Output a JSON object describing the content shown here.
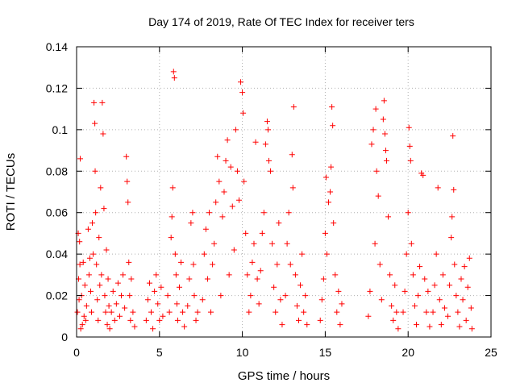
{
  "chart_data": {
    "type": "scatter",
    "title": "Day 174 of 2019, Rate Of TEC Index for receiver ters",
    "xlabel": "GPS time / hours",
    "ylabel": "ROTI / TECUs",
    "xlim": [
      0,
      25
    ],
    "ylim": [
      0,
      0.14
    ],
    "xticks": [
      0,
      5,
      10,
      15,
      20,
      25
    ],
    "xtick_labels": [
      "0",
      "5",
      "10",
      "15",
      "20",
      "25"
    ],
    "yticks": [
      0,
      0.02,
      0.04,
      0.06,
      0.08,
      0.1,
      0.12,
      0.14
    ],
    "ytick_labels": [
      "0",
      "0.02",
      "0.04",
      "0.06",
      "0.08",
      "0.1",
      "0.12",
      "0.14"
    ],
    "grid": true,
    "marker": "+",
    "marker_color": "#ff0000",
    "series": [
      {
        "name": "ROTI",
        "points": [
          [
            0.05,
            0.012
          ],
          [
            0.1,
            0.05
          ],
          [
            0.12,
            0.028
          ],
          [
            0.15,
            0.018
          ],
          [
            0.18,
            0.046
          ],
          [
            0.2,
            0.035
          ],
          [
            0.22,
            0.086
          ],
          [
            0.25,
            0.004
          ],
          [
            0.3,
            0.02
          ],
          [
            0.35,
            0.006
          ],
          [
            0.4,
            0.036
          ],
          [
            0.45,
            0.01
          ],
          [
            0.5,
            0.025
          ],
          [
            0.55,
            0.008
          ],
          [
            0.6,
            0.015
          ],
          [
            0.7,
            0.052
          ],
          [
            0.75,
            0.03
          ],
          [
            0.8,
            0.038
          ],
          [
            0.85,
            0.022
          ],
          [
            0.9,
            0.012
          ],
          [
            0.95,
            0.055
          ],
          [
            1.0,
            0.04
          ],
          [
            1.05,
            0.113
          ],
          [
            1.1,
            0.103
          ],
          [
            1.12,
            0.08
          ],
          [
            1.15,
            0.06
          ],
          [
            1.2,
            0.035
          ],
          [
            1.25,
            0.018
          ],
          [
            1.3,
            0.008
          ],
          [
            1.35,
            0.048
          ],
          [
            1.4,
            0.025
          ],
          [
            1.45,
            0.072
          ],
          [
            1.5,
            0.03
          ],
          [
            1.55,
            0.113
          ],
          [
            1.6,
            0.098
          ],
          [
            1.65,
            0.062
          ],
          [
            1.7,
            0.02
          ],
          [
            1.75,
            0.012
          ],
          [
            1.8,
            0.042
          ],
          [
            1.85,
            0.006
          ],
          [
            1.9,
            0.028
          ],
          [
            1.95,
            0.015
          ],
          [
            2.0,
            0.004
          ],
          [
            2.1,
            0.012
          ],
          [
            2.2,
            0.022
          ],
          [
            2.3,
            0.008
          ],
          [
            2.4,
            0.016
          ],
          [
            2.5,
            0.026
          ],
          [
            2.6,
            0.01
          ],
          [
            2.7,
            0.02
          ],
          [
            2.8,
            0.03
          ],
          [
            2.9,
            0.014
          ],
          [
            3.0,
            0.087
          ],
          [
            3.05,
            0.075
          ],
          [
            3.1,
            0.065
          ],
          [
            3.15,
            0.036
          ],
          [
            3.2,
            0.02
          ],
          [
            3.25,
            0.008
          ],
          [
            3.3,
            0.028
          ],
          [
            3.4,
            0.012
          ],
          [
            3.5,
            0.005
          ],
          [
            4.2,
            0.008
          ],
          [
            4.3,
            0.018
          ],
          [
            4.4,
            0.026
          ],
          [
            4.5,
            0.012
          ],
          [
            4.6,
            0.004
          ],
          [
            4.7,
            0.022
          ],
          [
            4.8,
            0.03
          ],
          [
            4.9,
            0.016
          ],
          [
            5.0,
            0.008
          ],
          [
            5.1,
            0.024
          ],
          [
            5.2,
            0.01
          ],
          [
            5.5,
            0.02
          ],
          [
            5.6,
            0.012
          ],
          [
            5.7,
            0.048
          ],
          [
            5.75,
            0.058
          ],
          [
            5.8,
            0.072
          ],
          [
            5.85,
            0.128
          ],
          [
            5.9,
            0.125
          ],
          [
            5.95,
            0.04
          ],
          [
            6.0,
            0.03
          ],
          [
            6.05,
            0.016
          ],
          [
            6.1,
            0.008
          ],
          [
            6.2,
            0.024
          ],
          [
            6.3,
            0.036
          ],
          [
            6.4,
            0.012
          ],
          [
            6.5,
            0.005
          ],
          [
            6.7,
            0.015
          ],
          [
            6.8,
            0.028
          ],
          [
            6.9,
            0.055
          ],
          [
            7.0,
            0.06
          ],
          [
            7.05,
            0.035
          ],
          [
            7.1,
            0.02
          ],
          [
            7.2,
            0.008
          ],
          [
            7.3,
            0.012
          ],
          [
            7.6,
            0.018
          ],
          [
            7.7,
            0.04
          ],
          [
            7.8,
            0.052
          ],
          [
            7.9,
            0.028
          ],
          [
            8.0,
            0.06
          ],
          [
            8.1,
            0.012
          ],
          [
            8.2,
            0.035
          ],
          [
            8.3,
            0.045
          ],
          [
            8.4,
            0.065
          ],
          [
            8.5,
            0.087
          ],
          [
            8.6,
            0.075
          ],
          [
            8.7,
            0.02
          ],
          [
            8.8,
            0.058
          ],
          [
            8.9,
            0.07
          ],
          [
            9.0,
            0.085
          ],
          [
            9.1,
            0.095
          ],
          [
            9.2,
            0.03
          ],
          [
            9.3,
            0.082
          ],
          [
            9.4,
            0.063
          ],
          [
            9.5,
            0.042
          ],
          [
            9.6,
            0.1
          ],
          [
            9.7,
            0.08
          ],
          [
            9.8,
            0.066
          ],
          [
            9.9,
            0.123
          ],
          [
            10.0,
            0.118
          ],
          [
            10.05,
            0.108
          ],
          [
            10.1,
            0.075
          ],
          [
            10.2,
            0.05
          ],
          [
            10.3,
            0.03
          ],
          [
            10.4,
            0.012
          ],
          [
            10.5,
            0.02
          ],
          [
            10.6,
            0.036
          ],
          [
            10.7,
            0.045
          ],
          [
            10.8,
            0.094
          ],
          [
            10.9,
            0.028
          ],
          [
            11.0,
            0.016
          ],
          [
            11.1,
            0.032
          ],
          [
            11.2,
            0.05
          ],
          [
            11.3,
            0.06
          ],
          [
            11.4,
            0.093
          ],
          [
            11.5,
            0.104
          ],
          [
            11.55,
            0.1
          ],
          [
            11.6,
            0.085
          ],
          [
            11.7,
            0.08
          ],
          [
            11.8,
            0.045
          ],
          [
            11.9,
            0.024
          ],
          [
            12.0,
            0.012
          ],
          [
            12.1,
            0.035
          ],
          [
            12.2,
            0.055
          ],
          [
            12.3,
            0.018
          ],
          [
            12.4,
            0.006
          ],
          [
            12.6,
            0.02
          ],
          [
            12.7,
            0.045
          ],
          [
            12.8,
            0.06
          ],
          [
            12.9,
            0.035
          ],
          [
            13.0,
            0.088
          ],
          [
            13.05,
            0.072
          ],
          [
            13.1,
            0.111
          ],
          [
            13.2,
            0.03
          ],
          [
            13.3,
            0.015
          ],
          [
            13.4,
            0.008
          ],
          [
            13.5,
            0.025
          ],
          [
            13.6,
            0.04
          ],
          [
            13.7,
            0.012
          ],
          [
            13.8,
            0.02
          ],
          [
            13.9,
            0.006
          ],
          [
            14.7,
            0.008
          ],
          [
            14.8,
            0.018
          ],
          [
            14.9,
            0.028
          ],
          [
            15.0,
            0.05
          ],
          [
            15.05,
            0.077
          ],
          [
            15.1,
            0.04
          ],
          [
            15.2,
            0.065
          ],
          [
            15.3,
            0.07
          ],
          [
            15.35,
            0.082
          ],
          [
            15.4,
            0.111
          ],
          [
            15.45,
            0.102
          ],
          [
            15.5,
            0.055
          ],
          [
            15.6,
            0.03
          ],
          [
            15.7,
            0.012
          ],
          [
            15.8,
            0.022
          ],
          [
            15.9,
            0.006
          ],
          [
            16.0,
            0.016
          ],
          [
            17.6,
            0.01
          ],
          [
            17.7,
            0.022
          ],
          [
            17.8,
            0.093
          ],
          [
            17.9,
            0.1
          ],
          [
            18.0,
            0.045
          ],
          [
            18.05,
            0.11
          ],
          [
            18.1,
            0.08
          ],
          [
            18.2,
            0.068
          ],
          [
            18.3,
            0.035
          ],
          [
            18.4,
            0.018
          ],
          [
            18.5,
            0.105
          ],
          [
            18.55,
            0.114
          ],
          [
            18.6,
            0.098
          ],
          [
            18.65,
            0.09
          ],
          [
            18.7,
            0.085
          ],
          [
            18.8,
            0.058
          ],
          [
            18.9,
            0.03
          ],
          [
            19.0,
            0.015
          ],
          [
            19.1,
            0.008
          ],
          [
            19.2,
            0.025
          ],
          [
            19.3,
            0.012
          ],
          [
            19.4,
            0.004
          ],
          [
            19.7,
            0.012
          ],
          [
            19.8,
            0.022
          ],
          [
            19.9,
            0.04
          ],
          [
            20.0,
            0.06
          ],
          [
            20.05,
            0.101
          ],
          [
            20.1,
            0.092
          ],
          [
            20.15,
            0.085
          ],
          [
            20.2,
            0.045
          ],
          [
            20.3,
            0.03
          ],
          [
            20.4,
            0.015
          ],
          [
            20.5,
            0.006
          ],
          [
            20.6,
            0.02
          ],
          [
            20.7,
            0.034
          ],
          [
            20.8,
            0.079
          ],
          [
            20.9,
            0.078
          ],
          [
            21.0,
            0.028
          ],
          [
            21.1,
            0.012
          ],
          [
            21.2,
            0.022
          ],
          [
            21.3,
            0.005
          ],
          [
            21.5,
            0.012
          ],
          [
            21.6,
            0.025
          ],
          [
            21.7,
            0.04
          ],
          [
            21.8,
            0.072
          ],
          [
            21.9,
            0.018
          ],
          [
            22.0,
            0.006
          ],
          [
            22.1,
            0.03
          ],
          [
            22.2,
            0.014
          ],
          [
            22.4,
            0.01
          ],
          [
            22.5,
            0.025
          ],
          [
            22.6,
            0.048
          ],
          [
            22.65,
            0.058
          ],
          [
            22.7,
            0.097
          ],
          [
            22.75,
            0.071
          ],
          [
            22.8,
            0.035
          ],
          [
            22.9,
            0.02
          ],
          [
            23.0,
            0.012
          ],
          [
            23.1,
            0.005
          ],
          [
            23.2,
            0.028
          ],
          [
            23.3,
            0.018
          ],
          [
            23.4,
            0.034
          ],
          [
            23.5,
            0.008
          ],
          [
            23.6,
            0.024
          ],
          [
            23.7,
            0.038
          ],
          [
            23.8,
            0.014
          ],
          [
            23.85,
            0.004
          ]
        ]
      }
    ]
  }
}
